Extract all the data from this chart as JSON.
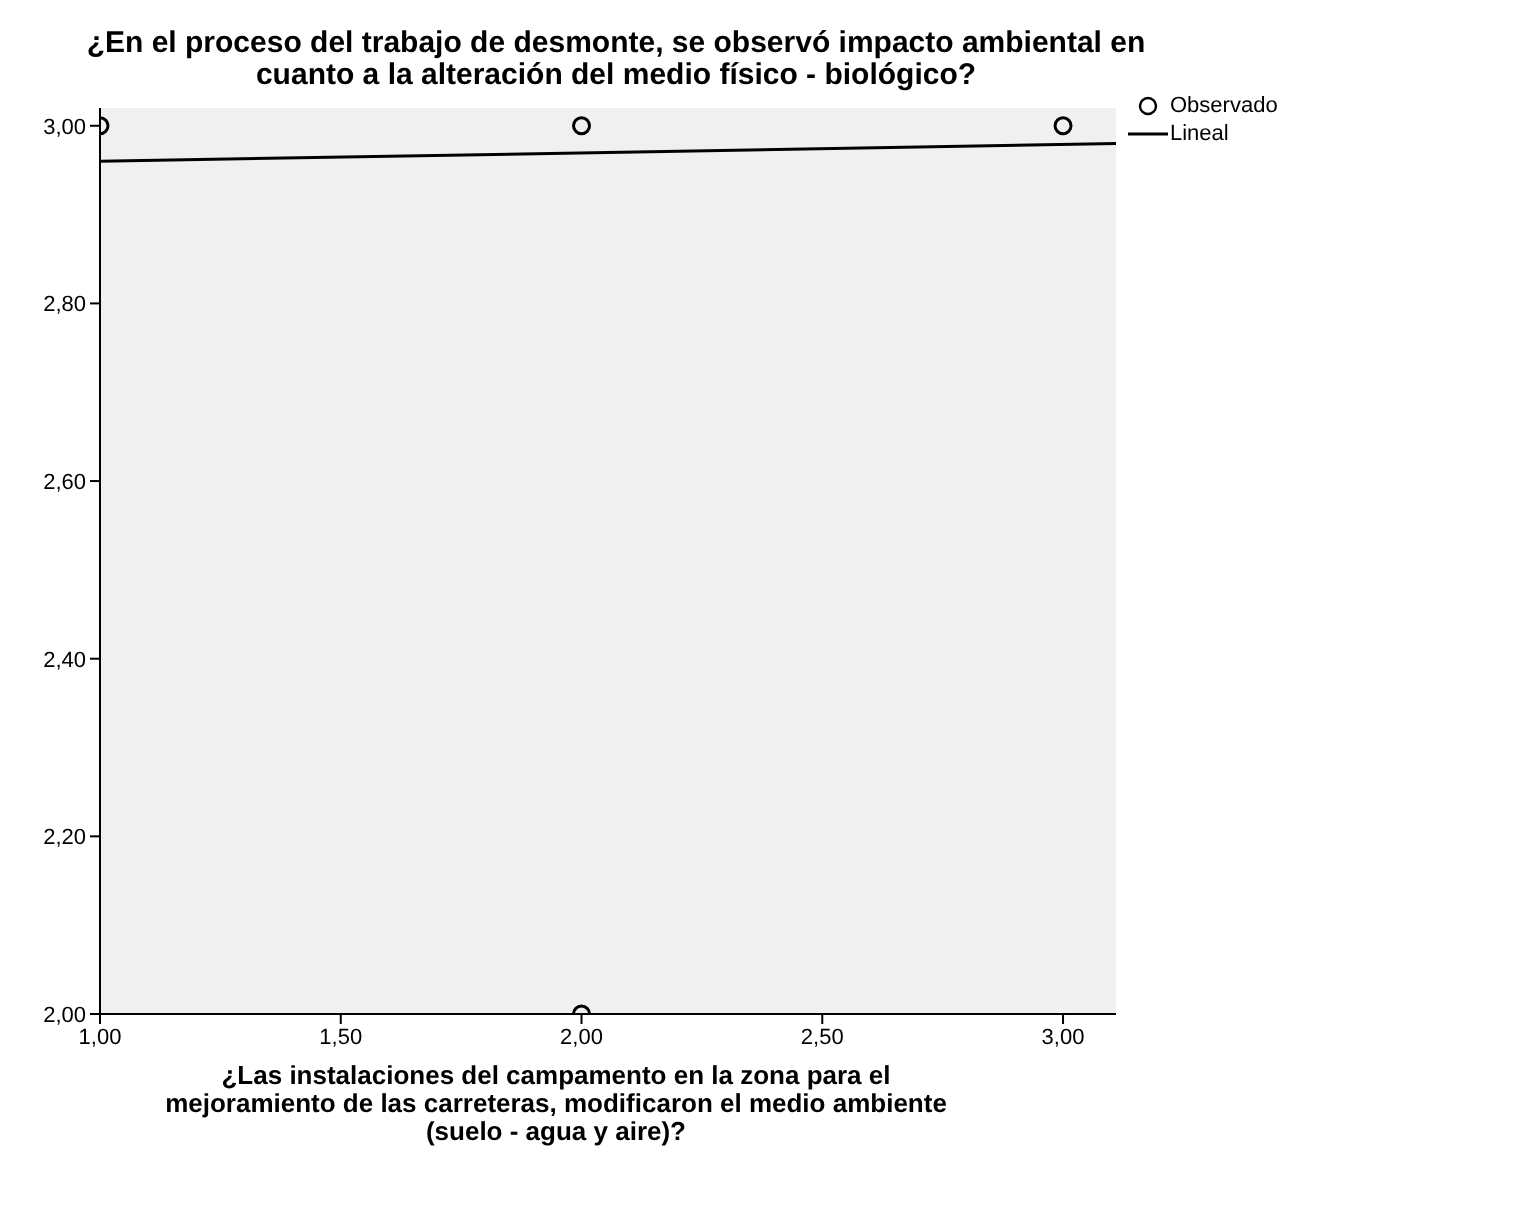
{
  "chart_data": {
    "type": "scatter",
    "title": "¿En el proceso del trabajo de desmonte, se observó impacto ambiental en cuanto a la alteración del medio físico - biológico?",
    "xlabel": "¿Las instalaciones del campamento en la zona para el mejoramiento de las carreteras, modificaron el medio ambiente (suelo - agua y aire)?",
    "series": [
      {
        "name": "Observado",
        "color": "#000000",
        "x": [
          1,
          2,
          3,
          2
        ],
        "values": [
          3,
          3,
          3,
          2
        ],
        "marker": "circle"
      },
      {
        "name": "Lineal",
        "type": "line",
        "color": "#000000",
        "x": [
          1,
          3.11
        ],
        "values": [
          2.96,
          2.98
        ],
        "marker": "none"
      }
    ],
    "xlim": [
      1,
      3.11
    ],
    "ylim": [
      2,
      3.02
    ],
    "xticks": [
      {
        "value": 1,
        "label": "1,00"
      },
      {
        "value": 1.5,
        "label": "1,50"
      },
      {
        "value": 2,
        "label": "2,00"
      },
      {
        "value": 2.5,
        "label": "2,50"
      },
      {
        "value": 3,
        "label": "3,00"
      }
    ],
    "yticks": [
      {
        "value": 2,
        "label": "2,00"
      },
      {
        "value": 2.2,
        "label": "2,20"
      },
      {
        "value": 2.4,
        "label": "2,40"
      },
      {
        "value": 2.6,
        "label": "2,60"
      },
      {
        "value": 2.8,
        "label": "2,80"
      },
      {
        "value": 3,
        "label": "3,00"
      }
    ],
    "grid": false,
    "legend": "top right"
  }
}
